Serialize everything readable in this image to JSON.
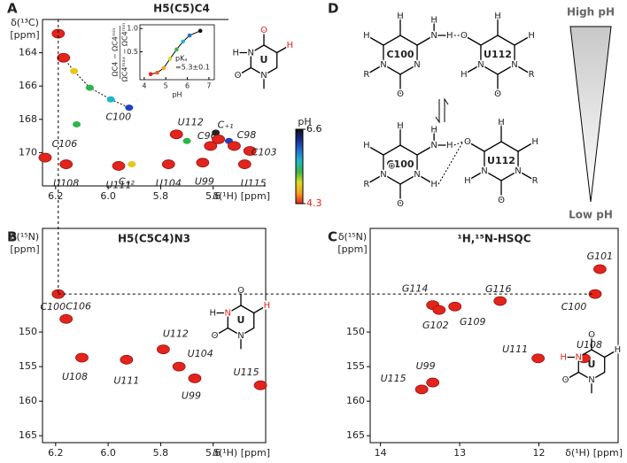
{
  "chart_data": [
    {
      "type": "scatter",
      "panel": "A",
      "title": "H5(C5)C4",
      "x_label": "δ(¹H) [ppm]",
      "y_label": [
        "δ(¹³C)",
        "[ppm]"
      ],
      "xlim": [
        6.25,
        5.4
      ],
      "ylim": [
        172,
        162
      ],
      "xticks": [
        6.2,
        {
          "value": 6,
          "label": "6.0"
        },
        5.8,
        5.6
      ],
      "yticks": [
        164,
        166,
        168,
        170
      ],
      "color": "#e3241d",
      "peaks": [
        {
          "x": 6.19,
          "y": 162.85
        },
        {
          "x": 6.17,
          "y": 164.3
        },
        {
          "x": 6.13,
          "y": 165.1,
          "color": "#e6c619"
        },
        {
          "x": 6.07,
          "y": 166.1,
          "color": "#2db34a"
        },
        {
          "x": 5.99,
          "y": 166.8,
          "color": "#1fb5c9"
        },
        {
          "x": 5.92,
          "y": 167.3,
          "color": "#1f3fbf",
          "label": "C100"
        },
        {
          "x": 6.12,
          "y": 168.3,
          "color": "#2db34a"
        },
        {
          "x": 6.24,
          "y": 170.3,
          "label": "C106"
        },
        {
          "x": 6.16,
          "y": 170.7,
          "label": "U108"
        },
        {
          "x": 5.96,
          "y": 170.8,
          "label": "U111"
        },
        {
          "x": 5.91,
          "y": 170.7,
          "color": "#e6c619",
          "label": "C₊₂"
        },
        {
          "x": 5.77,
          "y": 170.7,
          "label": "U104"
        },
        {
          "x": 5.74,
          "y": 168.9,
          "label": "U112"
        },
        {
          "x": 5.7,
          "y": 169.3,
          "color": "#2db34a"
        },
        {
          "x": 5.64,
          "y": 170.6,
          "label": "U99"
        },
        {
          "x": 5.61,
          "y": 169.6,
          "label": "C96"
        },
        {
          "x": 5.59,
          "y": 168.8,
          "color": "#222222"
        },
        {
          "x": 5.58,
          "y": 169.2,
          "label": "C₊₁"
        },
        {
          "x": 5.54,
          "y": 169.3,
          "color": "#1f3fbf"
        },
        {
          "x": 5.52,
          "y": 169.6,
          "label": "C98"
        },
        {
          "x": 5.46,
          "y": 169.9,
          "label": "C103"
        },
        {
          "x": 5.48,
          "y": 170.7,
          "label": "U115"
        }
      ],
      "structure": {
        "atoms": [
          "H",
          "N",
          "O",
          "H",
          "O",
          "N",
          "U"
        ]
      },
      "colorbar": {
        "label": "pH",
        "clim": [
          4.3,
          6.6
        ],
        "ticks": [
          6.6,
          4.3
        ],
        "colors": [
          "#111111",
          "#1b2a8c",
          "#1f6fd0",
          "#20b9c6",
          "#3bb54a",
          "#d8dc22",
          "#f5a21b",
          "#e8231e"
        ]
      }
    },
    {
      "type": "line",
      "x_label": "pH",
      "y_label": [
        "ΩC4 − ΩC4ᵐⁱⁿ",
        "ΩC4ᵐᵃˣ − ΩC4ᵐⁱⁿ"
      ],
      "xlim": [
        3.8,
        7.25
      ],
      "ylim": [
        -0.1,
        1.08
      ],
      "xticks": [
        4,
        5,
        6,
        7
      ],
      "yticks": [
        0.5,
        {
          "value": 1,
          "label": "1.0"
        }
      ],
      "x": [
        4.3,
        4.6,
        4.9,
        5.2,
        5.5,
        5.8,
        6.1,
        6.6
      ],
      "values": [
        0.02,
        0.05,
        0.15,
        0.35,
        0.55,
        0.72,
        0.85,
        0.95
      ],
      "colors": [
        "#e8231e",
        "#f06020",
        "#f5a21b",
        "#d8dc22",
        "#3bb54a",
        "#20b9c6",
        "#1f6fd0",
        "#111111"
      ],
      "color": "#555555",
      "annotation": [
        "pKₐ",
        "=5.3±0.1"
      ]
    },
    {
      "type": "scatter",
      "panel": "B",
      "title": "H5(C5C4)N3",
      "x_label": "δ(¹H) [ppm]",
      "y_label": [
        "δ(¹⁵N)",
        "[ppm]"
      ],
      "xlim": [
        6.25,
        5.4
      ],
      "ylim": [
        166,
        135
      ],
      "xticks": [
        6.2,
        {
          "value": 6,
          "label": "6.0"
        },
        5.8,
        5.6
      ],
      "yticks": [
        150,
        155,
        160,
        165
      ],
      "color": "#e3241d",
      "peaks": [
        {
          "x": 6.19,
          "y": 144.5,
          "label": "C100"
        },
        {
          "x": 6.16,
          "y": 148.1,
          "label": "C106"
        },
        {
          "x": 6.1,
          "y": 153.7,
          "label": "U108"
        },
        {
          "x": 5.93,
          "y": 154.0,
          "label": "U111"
        },
        {
          "x": 5.79,
          "y": 152.5,
          "label": "U112"
        },
        {
          "x": 5.73,
          "y": 155.0,
          "label": "U104"
        },
        {
          "x": 5.67,
          "y": 156.7,
          "label": "U99"
        },
        {
          "x": 5.42,
          "y": 157.7,
          "label": "U115"
        }
      ],
      "structure": {
        "atoms": [
          "H",
          "N",
          "O",
          "H",
          "O",
          "N",
          "U"
        ]
      }
    },
    {
      "type": "scatter",
      "panel": "C",
      "title": "¹H,¹⁵N-HSQC",
      "x_label": "δ(¹H) [ppm]",
      "y_label": [
        "δ(¹⁵N)",
        "[ppm]"
      ],
      "xlim": [
        14.13,
        11.0
      ],
      "ylim": [
        166,
        135
      ],
      "xticks": [
        14,
        13,
        12
      ],
      "yticks": [
        150,
        155,
        160,
        165
      ],
      "color": "#e3241d",
      "peaks": [
        {
          "x": 11.23,
          "y": 140.9,
          "label": "G101"
        },
        {
          "x": 11.29,
          "y": 144.5,
          "label": "C100"
        },
        {
          "x": 13.34,
          "y": 146.1,
          "label": "G114"
        },
        {
          "x": 13.26,
          "y": 146.8,
          "label": "G102"
        },
        {
          "x": 13.06,
          "y": 146.3,
          "label": "G109"
        },
        {
          "x": 12.49,
          "y": 145.5,
          "label": "G116"
        },
        {
          "x": 12.01,
          "y": 153.8,
          "label": "U111"
        },
        {
          "x": 11.43,
          "y": 153.8,
          "label": "U108"
        },
        {
          "x": 13.48,
          "y": 158.3,
          "label": "U115"
        },
        {
          "x": 13.34,
          "y": 157.3,
          "label": "U99"
        }
      ],
      "structure": {
        "atoms": [
          "H",
          "N",
          "O",
          "H",
          "O",
          "N",
          "U"
        ]
      }
    }
  ],
  "diagram": {
    "panel": "D",
    "top_label": "High pH",
    "bottom_label": "Low pH",
    "structures": [
      {
        "atoms": [
          "H",
          "N",
          "H",
          "H",
          "N",
          "O",
          "N",
          "R",
          "H",
          "C100"
        ]
      },
      {
        "atoms": [
          "O",
          "N",
          "H",
          "O",
          "N",
          "R",
          "H",
          "H",
          "U112"
        ]
      },
      {
        "atoms": [
          "H",
          "N",
          "H",
          "H",
          "N",
          "H",
          "O",
          "N",
          "R",
          "H",
          "C100",
          "⊕"
        ]
      },
      {
        "atoms": [
          "O",
          "N",
          "H",
          "O",
          "N",
          "R",
          "H",
          "H",
          "U112"
        ]
      }
    ]
  }
}
